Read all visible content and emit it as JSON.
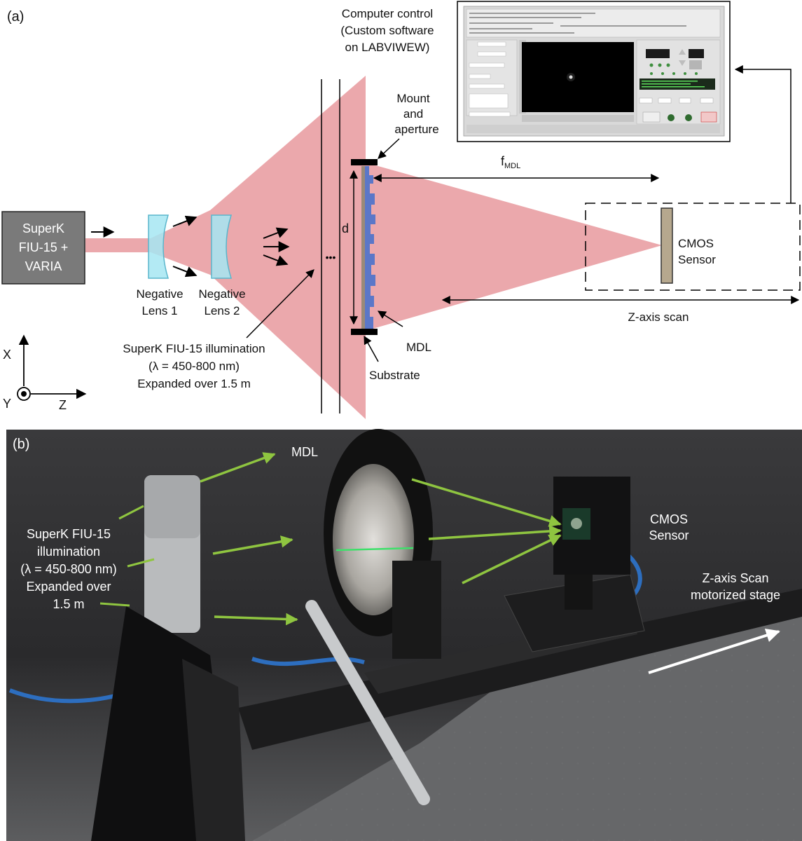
{
  "panel_a": {
    "label": "(a)",
    "source": {
      "line1": "SuperK",
      "line2": "FIU-15 +",
      "line3": "VARIA"
    },
    "lens1": {
      "line1": "Negative",
      "line2": "Lens 1"
    },
    "lens2": {
      "line1": "Negative",
      "line2": "Lens 2"
    },
    "illumination": {
      "line1": "SuperK FIU-15 illumination",
      "line2": "(λ = 450-800 nm)",
      "line3": "Expanded over 1.5 m"
    },
    "ellipsis": "•••",
    "mount": {
      "line1": "Mount",
      "line2": "and",
      "line3": "aperture"
    },
    "d_label": "d",
    "f_label": "f",
    "f_sub": "MDL",
    "mdl": "MDL",
    "substrate": "Substrate",
    "cmos": {
      "line1": "CMOS",
      "line2": "Sensor"
    },
    "zscan": "Z-axis scan",
    "computer": {
      "line1": "Computer control",
      "line2": "(Custom software",
      "line3": "on LABVIWEW)"
    },
    "axes": {
      "x": "X",
      "y": "Y",
      "z": "Z"
    }
  },
  "panel_b": {
    "label": "(b)",
    "mdl": "MDL",
    "illumination": {
      "line1": "SuperK FIU-15",
      "line2": "illumination",
      "line3": "(λ = 450-800 nm)",
      "line4": "Expanded over",
      "line5": "1.5 m"
    },
    "cmos": {
      "line1": "CMOS",
      "line2": "Sensor"
    },
    "stage": {
      "line1": "Z-axis Scan",
      "line2": "motorized stage"
    }
  },
  "colors": {
    "beam": "#eba8ac",
    "lens": "#a6e6f2",
    "source_box": "#7a7a7a",
    "arrow_green": "#8fc540",
    "photo_bg": "#2e2e2e"
  }
}
